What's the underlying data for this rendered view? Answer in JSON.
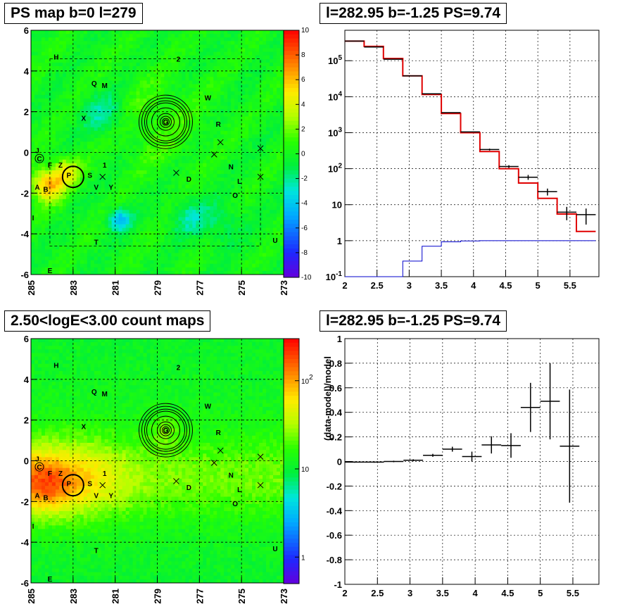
{
  "chart_data": [
    {
      "type": "heatmap",
      "title": "PS map b=0 l=279",
      "x_ticks": [
        "285",
        "283",
        "281",
        "279",
        "277",
        "275",
        "273"
      ],
      "y_ticks": [
        "6",
        "4",
        "2",
        "0",
        "-2",
        "-4",
        "-6"
      ],
      "xlim": [
        285,
        273
      ],
      "ylim": [
        -6,
        6
      ],
      "color_scale": {
        "ticks": [
          "10",
          "8",
          "6",
          "4",
          "2",
          "0",
          "-2",
          "-4",
          "-6",
          "-8",
          "-10"
        ],
        "range": [
          -10,
          10
        ],
        "log": false
      },
      "sources": [
        {
          "label": "H",
          "l": 283.8,
          "b": 4.7
        },
        {
          "label": "2",
          "l": 278.0,
          "b": 4.6
        },
        {
          "label": "Q",
          "l": 282.0,
          "b": 3.4
        },
        {
          "label": "M",
          "l": 281.5,
          "b": 3.3
        },
        {
          "label": "W",
          "l": 276.6,
          "b": 2.7
        },
        {
          "label": "X",
          "l": 282.5,
          "b": 1.7
        },
        {
          "label": "R",
          "l": 276.1,
          "b": 1.4
        },
        {
          "label": "G",
          "l": 278.6,
          "b": 1.5
        },
        {
          "label": "J",
          "l": 284.7,
          "b": 0.1
        },
        {
          "label": "C",
          "l": 284.6,
          "b": -0.3
        },
        {
          "label": "F",
          "l": 284.1,
          "b": -0.6
        },
        {
          "label": "Z",
          "l": 283.6,
          "b": -0.6
        },
        {
          "label": "P",
          "l": 283.2,
          "b": -1.1
        },
        {
          "label": "S",
          "l": 282.2,
          "b": -1.1
        },
        {
          "label": "1",
          "l": 281.5,
          "b": -0.6
        },
        {
          "label": "N",
          "l": 275.5,
          "b": -0.7
        },
        {
          "label": "D",
          "l": 277.5,
          "b": -1.3
        },
        {
          "label": "L",
          "l": 275.1,
          "b": -1.4
        },
        {
          "label": "V",
          "l": 281.9,
          "b": -1.7
        },
        {
          "label": "Y",
          "l": 281.2,
          "b": -1.7
        },
        {
          "label": "A",
          "l": 284.7,
          "b": -1.7
        },
        {
          "label": "B",
          "l": 284.3,
          "b": -1.8
        },
        {
          "label": "O",
          "l": 275.3,
          "b": -2.1
        },
        {
          "label": "I",
          "l": 284.9,
          "b": -3.2
        },
        {
          "label": "T",
          "l": 281.9,
          "b": -4.4
        },
        {
          "label": "U",
          "l": 273.4,
          "b": -4.3
        },
        {
          "label": "E",
          "l": 284.1,
          "b": -5.8
        }
      ],
      "crosses": [
        {
          "l": 276.0,
          "b": 0.5
        },
        {
          "l": 276.3,
          "b": -0.1
        },
        {
          "l": 274.1,
          "b": 0.2
        },
        {
          "l": 274.1,
          "b": -1.2
        },
        {
          "l": 278.1,
          "b": -1.0
        },
        {
          "l": 281.6,
          "b": -1.2
        }
      ]
    },
    {
      "type": "line",
      "title": "l=282.95 b=-1.25 PS=9.74",
      "xlim": [
        2,
        5.95
      ],
      "ylim": [
        0.1,
        700000
      ],
      "y_scale": "log",
      "x_ticks": [
        "2",
        "2.5",
        "3",
        "3.5",
        "4",
        "4.5",
        "5",
        "5.5"
      ],
      "y_ticks": [
        "10^-1",
        "1",
        "10",
        "10^2",
        "10^3",
        "10^4",
        "10^5"
      ],
      "x": [
        2.15,
        2.45,
        2.75,
        3.05,
        3.35,
        3.65,
        3.95,
        4.25,
        4.55,
        4.85,
        5.15,
        5.45,
        5.75
      ],
      "series": [
        {
          "values": [
            350000,
            240000,
            110000,
            38000,
            12000,
            3600,
            1050,
            340,
            115,
            58,
            23,
            6.2,
            5.3
          ],
          "errors": [
            0,
            0,
            0,
            0,
            0,
            0,
            0,
            20,
            10,
            9,
            5,
            2.5,
            2.5
          ]
        },
        {
          "values": [
            350000,
            250000,
            115000,
            38000,
            11500,
            3400,
            1000,
            300,
            100,
            40,
            15,
            5.5,
            1.8
          ]
        },
        {
          "values": [
            0.05,
            0.05,
            0.05,
            0.27,
            0.7,
            0.93,
            0.98,
            1.0,
            1.0,
            1.0,
            1.0,
            1.0,
            1.0
          ]
        }
      ],
      "colors": [
        "#000000",
        "#e00000",
        "#0000cc"
      ]
    },
    {
      "type": "heatmap",
      "title": "2.50<logE<3.00 count maps",
      "x_ticks": [
        "285",
        "283",
        "281",
        "279",
        "277",
        "275",
        "273"
      ],
      "y_ticks": [
        "6",
        "4",
        "2",
        "0",
        "-2",
        "-4",
        "-6"
      ],
      "xlim": [
        285,
        273
      ],
      "ylim": [
        -6,
        6
      ],
      "color_scale": {
        "ticks": [
          "10^2",
          "10",
          "1"
        ],
        "range": [
          0.5,
          300
        ],
        "log": true
      }
    },
    {
      "type": "scatter",
      "title": "l=282.95 b=-1.25 PS=9.74",
      "ylabel": "(data-model)/model",
      "xlim": [
        2,
        5.9
      ],
      "ylim": [
        -1,
        1
      ],
      "x_ticks": [
        "2",
        "2.5",
        "3",
        "3.5",
        "4",
        "4.5",
        "5",
        "5.5"
      ],
      "y_ticks": [
        "1",
        "0.8",
        "0.6",
        "0.4",
        "0.2",
        "0",
        "-0.2",
        "-0.4",
        "-0.6",
        "-0.8",
        "-1"
      ],
      "x": [
        2.15,
        2.45,
        2.75,
        3.05,
        3.35,
        3.65,
        3.95,
        4.25,
        4.55,
        4.85,
        5.15,
        5.45
      ],
      "values": [
        -0.005,
        -0.005,
        0.0,
        0.01,
        0.05,
        0.1,
        0.04,
        0.135,
        0.13,
        0.44,
        0.49,
        0.125
      ],
      "errors": [
        0.005,
        0.005,
        0.006,
        0.008,
        0.012,
        0.02,
        0.04,
        0.07,
        0.1,
        0.2,
        0.31,
        0.46
      ]
    }
  ]
}
